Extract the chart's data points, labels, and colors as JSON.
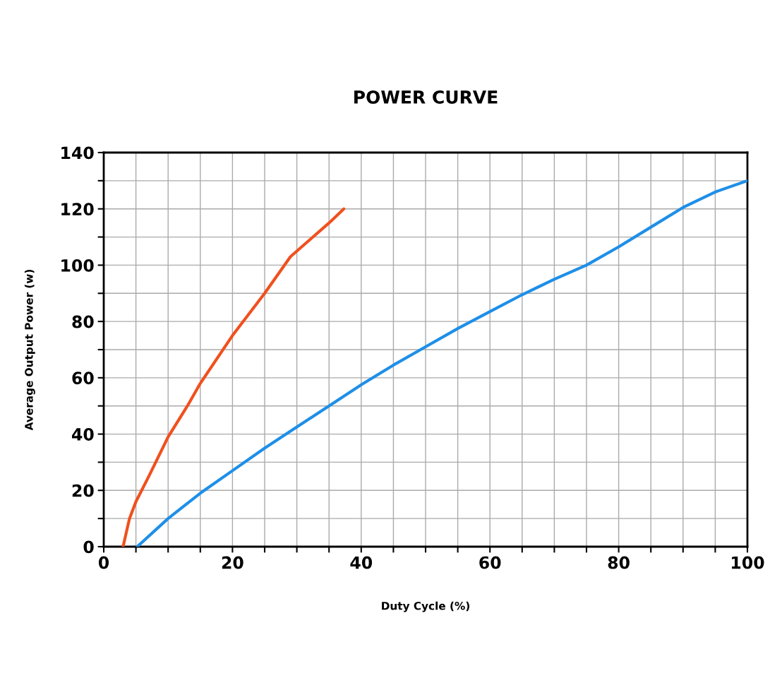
{
  "chart_data": {
    "type": "line",
    "title": "POWER CURVE",
    "xlabel": "Duty Cycle (%)",
    "ylabel": "Average Output Power (w)",
    "xlim": [
      0,
      100
    ],
    "ylim": [
      0,
      140
    ],
    "xticks": [
      0,
      {
        "value": 5,
        "label": null
      },
      20,
      {
        "value": 10,
        "label": null
      },
      {
        "value": 15,
        "label": null
      },
      {
        "value": 25,
        "label": null
      },
      {
        "value": 30,
        "label": null
      },
      {
        "value": 35,
        "label": null
      },
      40,
      {
        "value": 45,
        "label": null
      },
      {
        "value": 50,
        "label": null
      },
      {
        "value": 55,
        "label": null
      },
      60,
      {
        "value": 65,
        "label": null
      },
      {
        "value": 70,
        "label": null
      },
      {
        "value": 75,
        "label": null
      },
      80,
      {
        "value": 85,
        "label": null
      },
      {
        "value": 90,
        "label": null
      },
      {
        "value": 95,
        "label": null
      },
      100
    ],
    "yticks": [
      0,
      {
        "value": 10,
        "label": null
      },
      20,
      {
        "value": 30,
        "label": null
      },
      40,
      {
        "value": 50,
        "label": null
      },
      60,
      {
        "value": 70,
        "label": null
      },
      80,
      {
        "value": 90,
        "label": null
      },
      100,
      {
        "value": 110,
        "label": null
      },
      120,
      {
        "value": 130,
        "label": null
      },
      140
    ],
    "grid": true,
    "legend": false,
    "marker": "none",
    "line_style": "solid",
    "series": [
      {
        "color": "#1e8fe8",
        "x": [
          5.2,
          10,
          15,
          20,
          25,
          30,
          35,
          40,
          45,
          50,
          55,
          60,
          65,
          70,
          75,
          80,
          85,
          90,
          95,
          100
        ],
        "values": [
          0,
          10,
          19,
          27,
          35,
          42.5,
          50,
          57.5,
          64.5,
          71,
          77.5,
          83.5,
          89.5,
          95,
          100,
          106.5,
          113.5,
          120.5,
          126,
          130
        ]
      },
      {
        "color": "#f0501e",
        "x": [
          3,
          4,
          5,
          7,
          10,
          13,
          15,
          20,
          25,
          29,
          31,
          35,
          37.3
        ],
        "values": [
          0,
          10,
          16,
          25,
          39,
          50,
          58,
          75,
          90,
          103,
          107,
          115,
          120
        ]
      }
    ]
  }
}
